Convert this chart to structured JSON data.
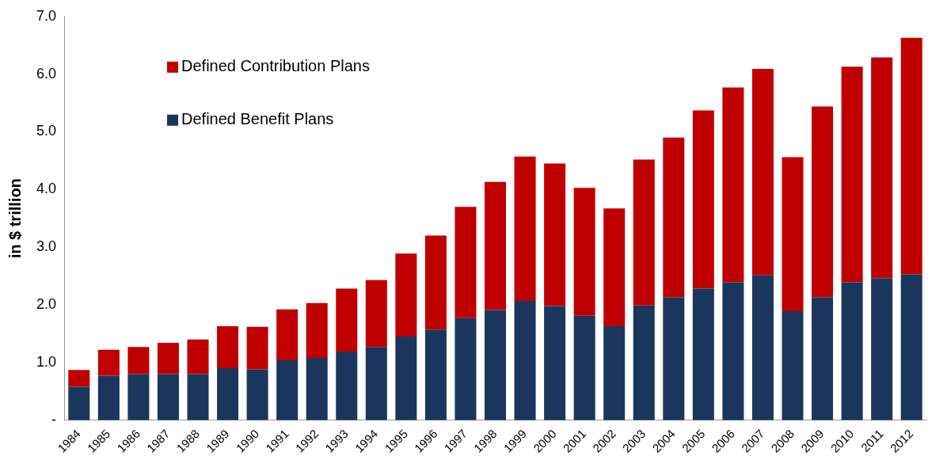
{
  "chart_data": {
    "type": "bar",
    "stacked": true,
    "ylabel": "in $ trillion",
    "legend": "top left",
    "grid": false,
    "categories": [
      "1984",
      "1985",
      "1986",
      "1987",
      "1988",
      "1989",
      "1990",
      "1991",
      "1992",
      "1993",
      "1994",
      "1995",
      "1996",
      "1997",
      "1998",
      "1999",
      "2000",
      "2001",
      "2002",
      "2003",
      "2004",
      "2005",
      "2006",
      "2007",
      "2008",
      "2009",
      "2010",
      "2011",
      "2012"
    ],
    "ylim": [
      0,
      7
    ],
    "yticks": [
      {
        "value": 0,
        "label": "-"
      },
      {
        "value": 1,
        "label": "1.0"
      },
      {
        "value": 2,
        "label": "2.0"
      },
      {
        "value": 3,
        "label": "3.0"
      },
      {
        "value": 4,
        "label": "4.0"
      },
      {
        "value": 5,
        "label": "5.0"
      },
      {
        "value": 6,
        "label": "6.0"
      },
      {
        "value": 7,
        "label": "7.0"
      }
    ],
    "series": [
      {
        "name": "Defined Benefit Plans",
        "color": "#1b365d",
        "values": [
          0.58,
          0.77,
          0.8,
          0.8,
          0.8,
          0.9,
          0.88,
          1.04,
          1.08,
          1.19,
          1.27,
          1.45,
          1.57,
          1.77,
          1.91,
          2.07,
          1.98,
          1.81,
          1.63,
          1.99,
          2.13,
          2.28,
          2.39,
          2.51,
          1.89,
          2.13,
          2.39,
          2.46,
          2.53
        ]
      },
      {
        "name": "Defined Contribution Plans",
        "color": "#c00000",
        "values": [
          0.29,
          0.45,
          0.47,
          0.54,
          0.6,
          0.73,
          0.74,
          0.88,
          0.95,
          1.09,
          1.16,
          1.44,
          1.63,
          1.93,
          2.22,
          2.5,
          2.47,
          2.22,
          2.04,
          2.53,
          2.77,
          3.09,
          3.38,
          3.58,
          2.67,
          3.31,
          3.74,
          3.83,
          4.1
        ]
      }
    ]
  }
}
